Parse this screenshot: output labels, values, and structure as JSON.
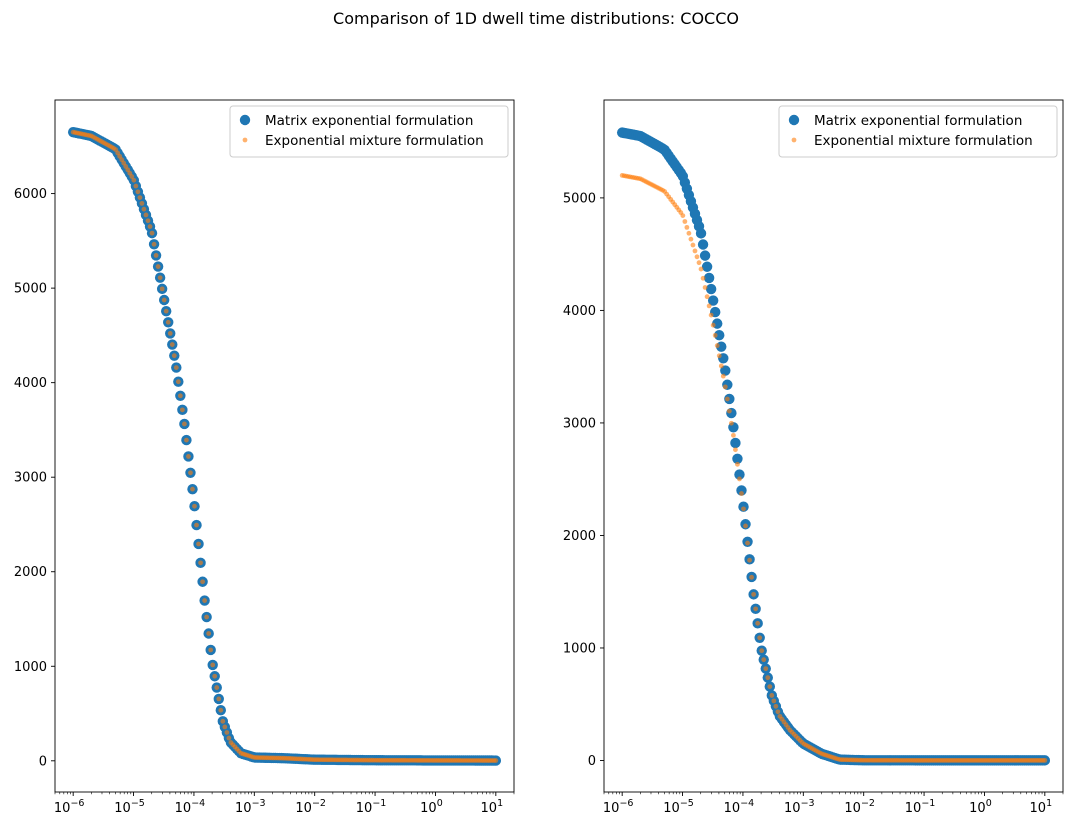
{
  "title": "Comparison of 1D dwell time distributions: COCCO",
  "colors": {
    "matrix": "#1f77b4",
    "mixture": "#ff7f0e"
  },
  "chart_data": [
    {
      "type": "scatter",
      "xscale": "log",
      "xlim": [
        5e-07,
        20
      ],
      "ylim": [
        -330,
        6990
      ],
      "xticks": [
        1e-06,
        1e-05,
        0.0001,
        0.001,
        0.01,
        0.1,
        1,
        10
      ],
      "xtick_labels": [
        [
          "10",
          "−6"
        ],
        [
          "10",
          "−5"
        ],
        [
          "10",
          "−4"
        ],
        [
          "10",
          "−3"
        ],
        [
          "10",
          "−2"
        ],
        [
          "10",
          "−1"
        ],
        [
          "10",
          "0"
        ],
        [
          "10",
          "1"
        ]
      ],
      "yticks": [
        0,
        1000,
        2000,
        3000,
        4000,
        5000,
        6000
      ],
      "ytick_labels": [
        "0",
        "1000",
        "2000",
        "3000",
        "4000",
        "5000",
        "6000"
      ],
      "legend_position": "upper right",
      "series": [
        {
          "name": "Matrix exponential formulation",
          "marker": "large",
          "curve": [
            [
              1e-06,
              6650
            ],
            [
              2e-06,
              6610
            ],
            [
              5e-06,
              6470
            ],
            [
              1e-05,
              6150
            ],
            [
              2e-05,
              5600
            ],
            [
              3e-05,
              4980
            ],
            [
              5e-05,
              4200
            ],
            [
              7e-05,
              3550
            ],
            [
              0.0001,
              2750
            ],
            [
              0.00015,
              1700
            ],
            [
              0.0002,
              1050
            ],
            [
              0.0003,
              420
            ],
            [
              0.0004,
              200
            ],
            [
              0.0006,
              80
            ],
            [
              0.001,
              35
            ],
            [
              0.003,
              28
            ],
            [
              0.01,
              12
            ],
            [
              0.1,
              6
            ],
            [
              1,
              4
            ],
            [
              10,
              3
            ]
          ]
        },
        {
          "name": "Exponential mixture formulation",
          "marker": "small",
          "curve": [
            [
              1e-06,
              6650
            ],
            [
              2e-06,
              6610
            ],
            [
              5e-06,
              6470
            ],
            [
              1e-05,
              6150
            ],
            [
              2e-05,
              5600
            ],
            [
              3e-05,
              4980
            ],
            [
              5e-05,
              4200
            ],
            [
              7e-05,
              3550
            ],
            [
              0.0001,
              2750
            ],
            [
              0.00015,
              1700
            ],
            [
              0.0002,
              1050
            ],
            [
              0.0003,
              420
            ],
            [
              0.0004,
              200
            ],
            [
              0.0006,
              80
            ],
            [
              0.001,
              35
            ],
            [
              0.003,
              28
            ],
            [
              0.01,
              12
            ],
            [
              0.1,
              6
            ],
            [
              1,
              4
            ],
            [
              10,
              3
            ]
          ]
        }
      ]
    },
    {
      "type": "scatter",
      "xscale": "log",
      "xlim": [
        5e-07,
        20
      ],
      "ylim": [
        -280,
        5870
      ],
      "xticks": [
        1e-06,
        1e-05,
        0.0001,
        0.001,
        0.01,
        0.1,
        1,
        10
      ],
      "xtick_labels": [
        [
          "10",
          "−6"
        ],
        [
          "10",
          "−5"
        ],
        [
          "10",
          "−4"
        ],
        [
          "10",
          "−3"
        ],
        [
          "10",
          "−2"
        ],
        [
          "10",
          "−1"
        ],
        [
          "10",
          "0"
        ],
        [
          "10",
          "1"
        ]
      ],
      "yticks": [
        0,
        1000,
        2000,
        3000,
        4000,
        5000
      ],
      "ytick_labels": [
        "0",
        "1000",
        "2000",
        "3000",
        "4000",
        "5000"
      ],
      "legend_position": "upper right",
      "series": [
        {
          "name": "Matrix exponential formulation",
          "marker": "large",
          "curve": [
            [
              1e-06,
              5580
            ],
            [
              2e-06,
              5550
            ],
            [
              5e-06,
              5430
            ],
            [
              1e-05,
              5200
            ],
            [
              2e-05,
              4700
            ],
            [
              3e-05,
              4180
            ],
            [
              5e-05,
              3500
            ],
            [
              7e-05,
              2950
            ],
            [
              0.0001,
              2300
            ],
            [
              0.00015,
              1480
            ],
            [
              0.0002,
              1000
            ],
            [
              0.0003,
              580
            ],
            [
              0.0004,
              400
            ],
            [
              0.0006,
              270
            ],
            [
              0.001,
              150
            ],
            [
              0.002,
              60
            ],
            [
              0.004,
              8
            ],
            [
              0.01,
              2
            ],
            [
              0.1,
              1
            ],
            [
              1,
              1
            ],
            [
              10,
              1
            ]
          ]
        },
        {
          "name": "Exponential mixture formulation",
          "marker": "small",
          "curve": [
            [
              1e-06,
              5200
            ],
            [
              2e-06,
              5170
            ],
            [
              5e-06,
              5060
            ],
            [
              1e-05,
              4850
            ],
            [
              2e-05,
              4380
            ],
            [
              3e-05,
              3950
            ],
            [
              5e-05,
              3350
            ],
            [
              7e-05,
              2880
            ],
            [
              0.0001,
              2280
            ],
            [
              0.00015,
              1480
            ],
            [
              0.0002,
              1000
            ],
            [
              0.0003,
              580
            ],
            [
              0.0004,
              400
            ],
            [
              0.0006,
              270
            ],
            [
              0.001,
              150
            ],
            [
              0.002,
              60
            ],
            [
              0.004,
              8
            ],
            [
              0.01,
              2
            ],
            [
              0.1,
              1
            ],
            [
              1,
              1
            ],
            [
              10,
              1
            ]
          ]
        }
      ]
    }
  ]
}
